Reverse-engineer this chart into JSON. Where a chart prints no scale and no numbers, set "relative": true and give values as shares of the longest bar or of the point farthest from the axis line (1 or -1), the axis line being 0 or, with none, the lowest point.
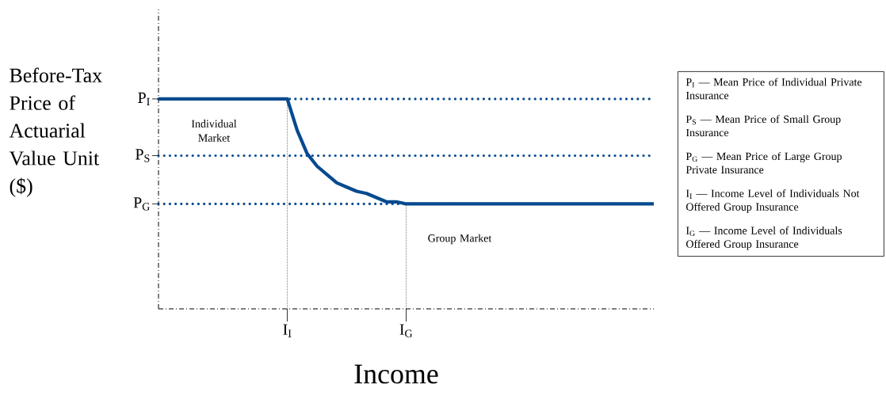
{
  "chart_data": {
    "type": "line",
    "xlabel": "Income",
    "ylabel": "Before-Tax Price of Actuarial Value Unit ($)",
    "relative": true,
    "categories": [
      null,
      null,
      null,
      null,
      null,
      null,
      null,
      null,
      null,
      null,
      null,
      null,
      null,
      "I$_{I}$",
      null,
      null,
      null,
      null,
      null,
      null,
      null,
      null,
      null,
      null,
      null,
      "I$_{G}$",
      null,
      null,
      null,
      null,
      null,
      null,
      null,
      null,
      null,
      null,
      null,
      null,
      null,
      null,
      null,
      null,
      null,
      null,
      null,
      null,
      null,
      null,
      null,
      null,
      null
    ],
    "line_style": "solid",
    "series": [
      {
        "color": "#064a8f",
        "values": [
          1,
          1,
          1,
          1,
          1,
          1,
          1,
          1,
          1,
          1,
          1,
          1,
          1,
          1,
          0.85,
          0.74,
          0.68,
          0.64,
          0.6,
          0.58,
          0.56,
          0.55,
          0.53,
          0.51,
          0.51,
          0.5,
          0.5,
          0.5,
          0.5,
          0.5,
          0.5,
          0.5,
          0.5,
          0.5,
          0.5,
          0.5,
          0.5,
          0.5,
          0.5,
          0.5,
          0.5,
          0.5,
          0.5,
          0.5,
          0.5,
          0.5,
          0.5,
          0.5,
          0.5,
          0.5,
          0.5
        ]
      }
    ],
    "ref_lines": [
      {
        "axis": "y",
        "value": 1,
        "label": "P$_{I}$",
        "color": "#064a8f",
        "line_style": "dotted"
      },
      {
        "axis": "y",
        "value": 0.73,
        "label": "P$_{S}$",
        "color": "#064a8f",
        "line_style": "dotted"
      },
      {
        "axis": "y",
        "value": 0.5,
        "label": "P$_{G}$",
        "color": "#064a8f",
        "line_style": "dotted"
      }
    ],
    "annotations": [
      "Individual Market",
      "Group Market",
      "P$_{I}$ — Mean Price of Individual Private Insurance",
      "P$_{S}$ — Mean Price of Small Group Insurance",
      "P$_{G}$ — Mean Price of Large Group Private Insurance",
      "I$_{I}$ — Income Level of Individuals Not Offered Group Insurance",
      "I$_{G}$ — Income Level of Individuals Offered Group Insurance"
    ]
  }
}
